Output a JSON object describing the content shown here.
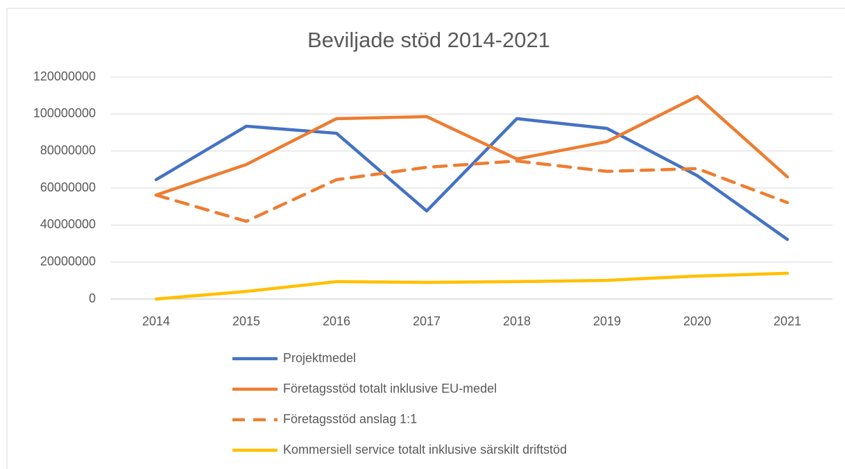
{
  "chart_data": {
    "type": "line",
    "title": "Beviljade stöd 2014-2021",
    "categories": [
      "2014",
      "2015",
      "2016",
      "2017",
      "2018",
      "2019",
      "2020",
      "2021"
    ],
    "series": [
      {
        "name": "Projektmedel",
        "color": "#4472c4",
        "dashed": false,
        "values": [
          64500000,
          93400000,
          89600000,
          47600000,
          97500000,
          92200000,
          66700000,
          32200000
        ]
      },
      {
        "name": "Företagsstöd totalt inklusive EU-medel",
        "color": "#ed7d31",
        "dashed": false,
        "values": [
          56200000,
          72700000,
          97500000,
          98600000,
          75700000,
          85100000,
          109500000,
          66000000
        ]
      },
      {
        "name": "Företagsstöd anslag 1:1",
        "color": "#ed7d31",
        "dashed": true,
        "values": [
          56200000,
          42000000,
          64500000,
          71200000,
          74600000,
          69000000,
          70500000,
          52100000
        ]
      },
      {
        "name": "Kommersiell service totalt inklusive särskilt driftstöd",
        "color": "#ffc000",
        "dashed": false,
        "values": [
          0,
          4100000,
          9400000,
          9000000,
          9400000,
          10100000,
          12400000,
          13900000
        ]
      }
    ],
    "ylim": [
      0,
      120000000
    ],
    "yticks": [
      0,
      20000000,
      40000000,
      60000000,
      80000000,
      100000000,
      120000000
    ],
    "grid": true,
    "legend": "bottom"
  }
}
